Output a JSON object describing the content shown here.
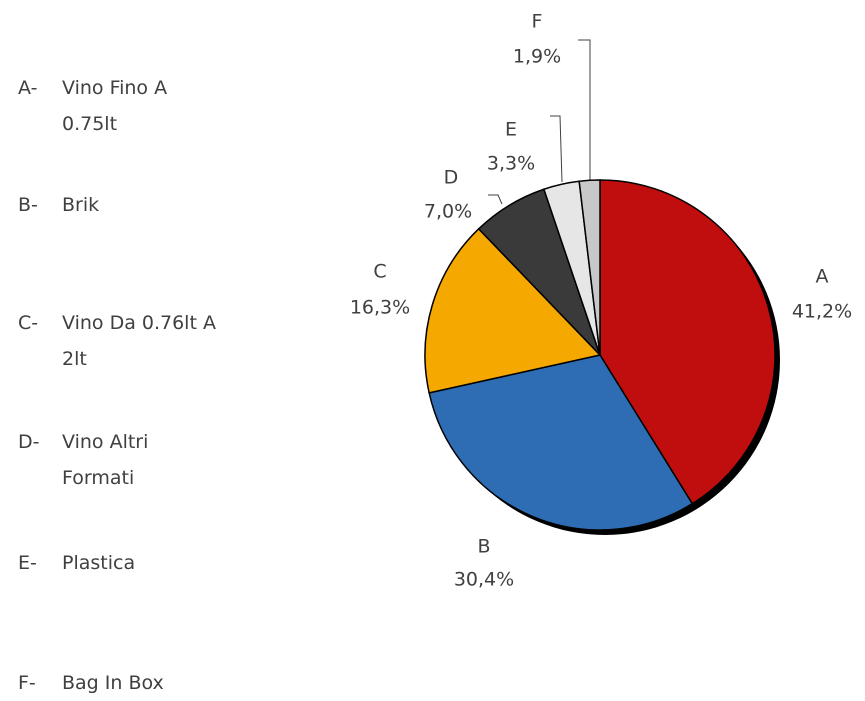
{
  "chart_data": {
    "type": "pie",
    "categories": [
      "A",
      "B",
      "C",
      "D",
      "E",
      "F"
    ],
    "values": [
      41.2,
      30.4,
      16.3,
      7.0,
      3.3,
      1.9
    ],
    "value_labels": [
      "41,2%",
      "30,4%",
      "16,3%",
      "7,0%",
      "3,3%",
      "1,9%"
    ],
    "colors": [
      "#c00d0d",
      "#2e6db4",
      "#f5a800",
      "#3a3a3a",
      "#e6e6e6",
      "#c8c8c8"
    ],
    "legend_keys": [
      "A-",
      "B-",
      "C-",
      "D-",
      "E-",
      "F-"
    ],
    "legend_texts": [
      "Vino Fino A 0.75lt",
      "Brik",
      "Vino Da 0.76lt A 2lt",
      "Vino Altri Formati",
      "Plastica",
      "Bag In Box"
    ]
  }
}
